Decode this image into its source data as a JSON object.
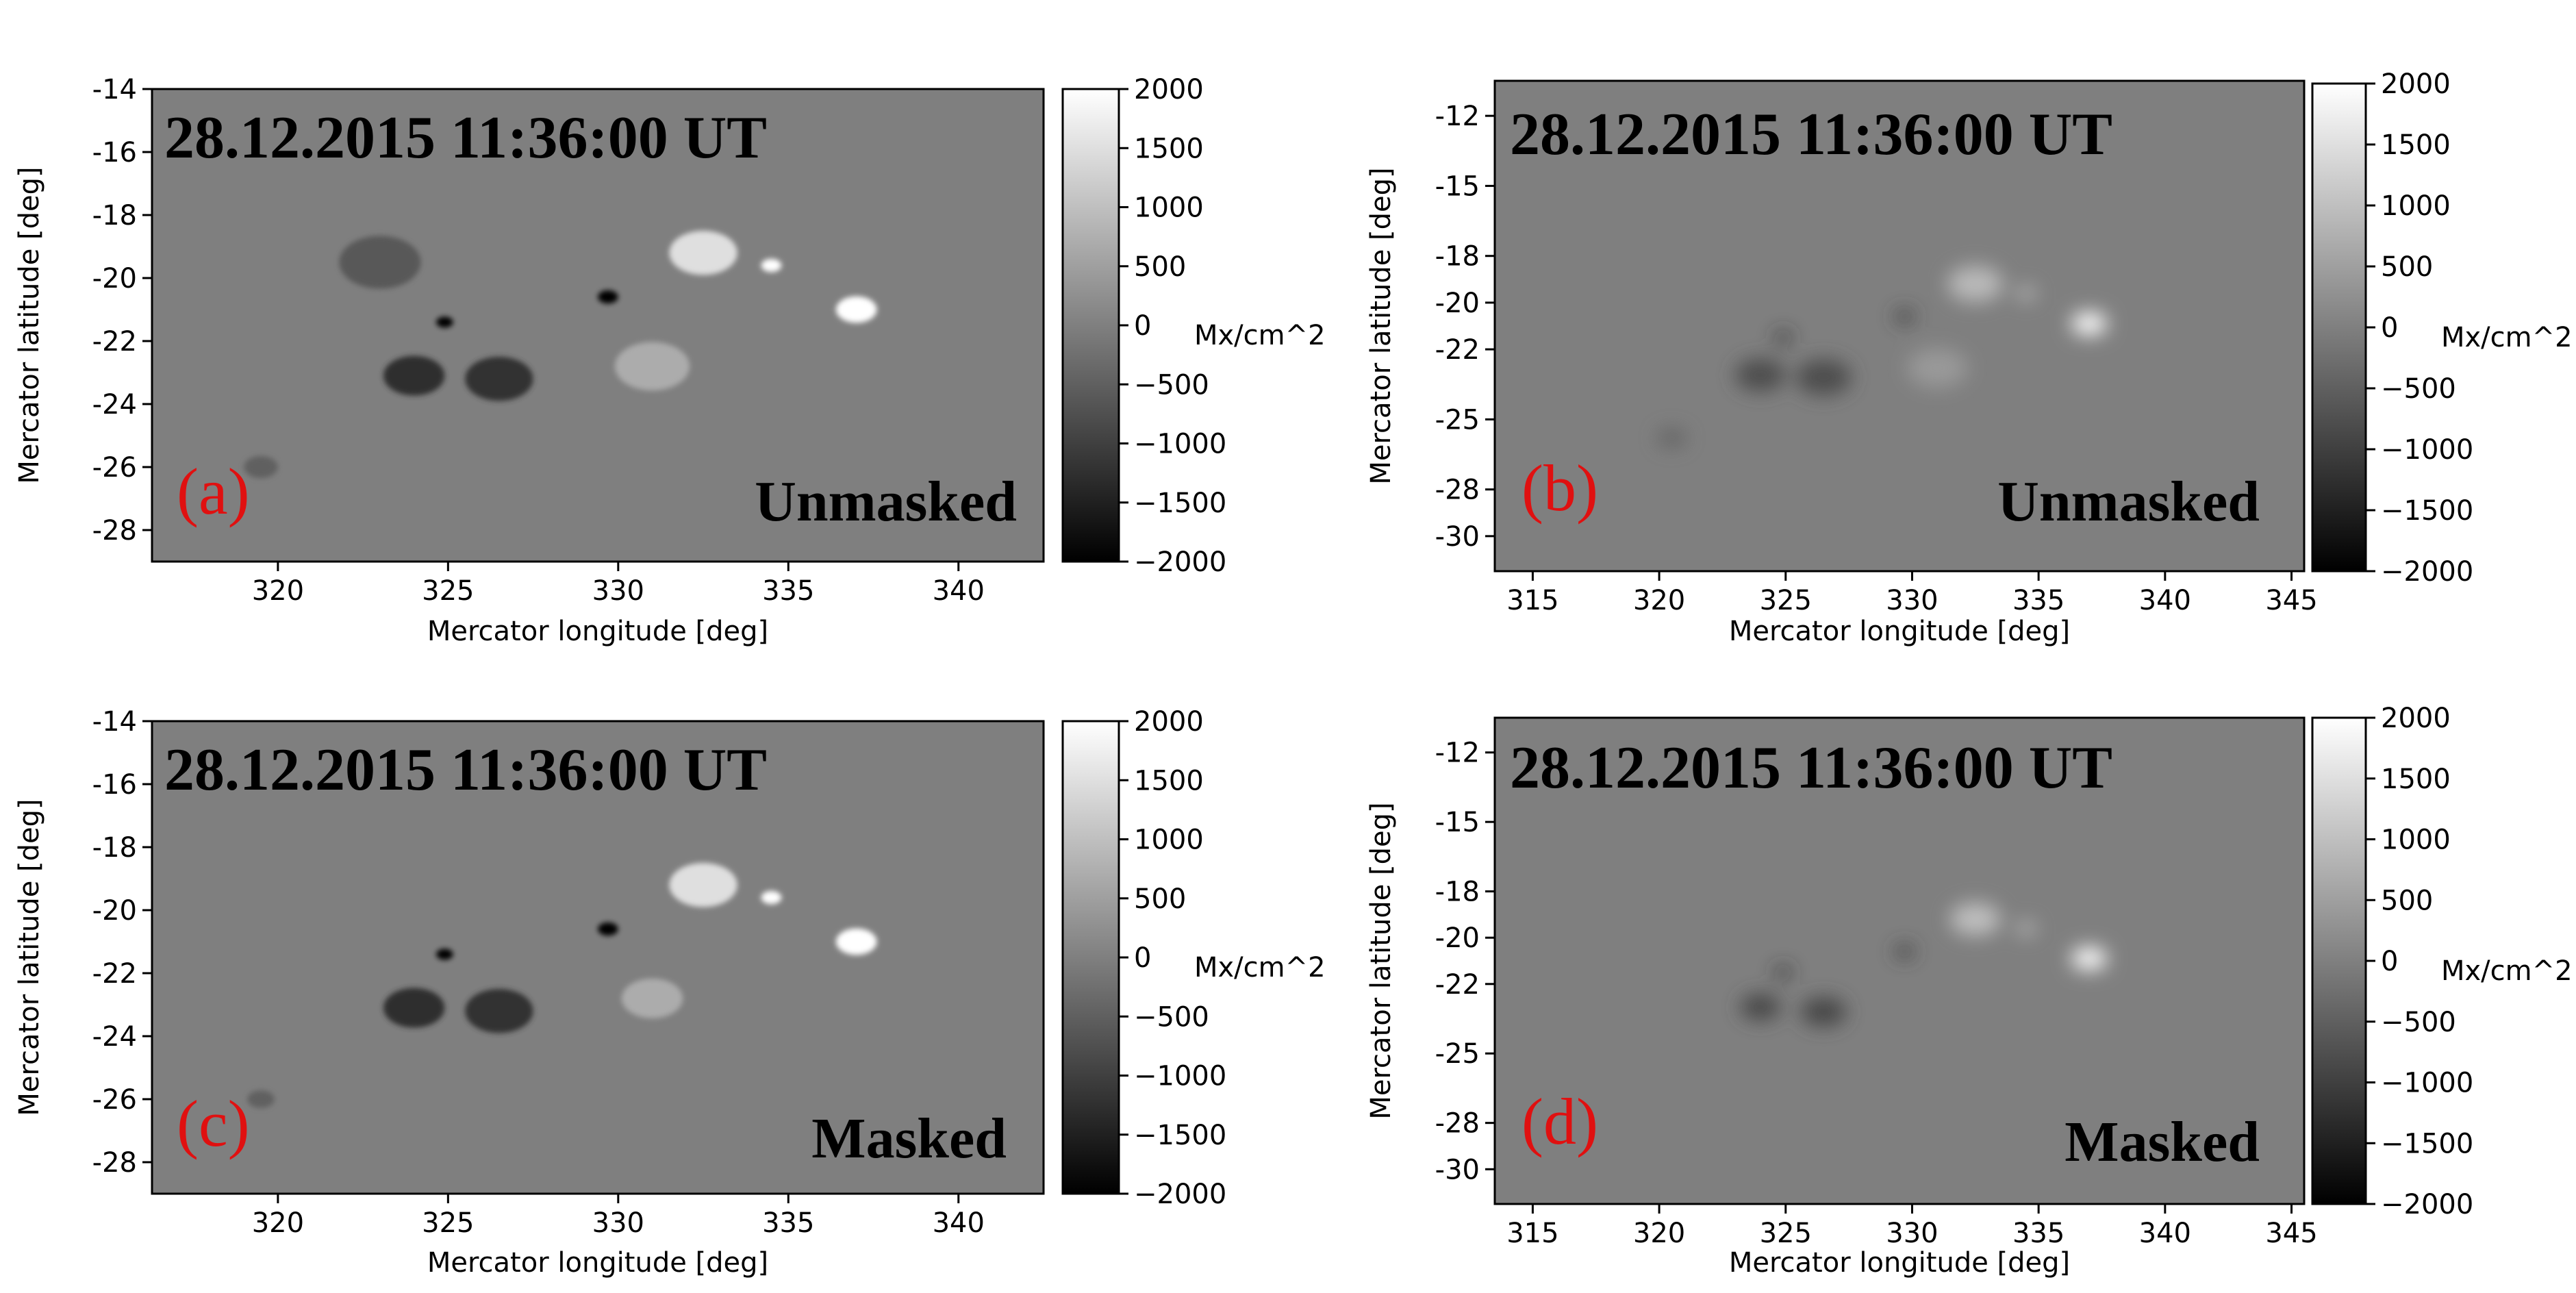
{
  "colors": {
    "map_background": "#7f7f7f",
    "panel_letter": "#e01010",
    "colormap_low": "#000000",
    "colormap_high": "#ffffff"
  },
  "chart_data": [
    {
      "type": "heatmap",
      "panel": "(a)",
      "timestamp": "28.12.2015  11:36:00 UT",
      "status": "Unmasked",
      "xlabel": "Mercator longitude [deg]",
      "ylabel": "Mercator latitude [deg]",
      "xticks": [
        "320",
        "325",
        "330",
        "335",
        "340"
      ],
      "yticks": [
        "-14",
        "-16",
        "-18",
        "-20",
        "-22",
        "-24",
        "-26",
        "-28"
      ],
      "xlim": [
        316.3,
        342.5
      ],
      "ylim": [
        -29,
        -14
      ],
      "colorbar": {
        "label": "Mx/cm^2",
        "ticks": [
          "2000",
          "1500",
          "1000",
          "500",
          "0",
          "−500",
          "−1000",
          "−1500",
          "−2000"
        ],
        "range": [
          -2000,
          2000
        ]
      },
      "style": "sharp",
      "features": [
        {
          "lon": 324.9,
          "lat": -21.4,
          "value": -2000,
          "size": 0.25
        },
        {
          "lon": 324.0,
          "lat": -23.1,
          "value": -1300,
          "size": 0.9
        },
        {
          "lon": 326.5,
          "lat": -23.2,
          "value": -1200,
          "size": 1.0
        },
        {
          "lon": 329.7,
          "lat": -20.6,
          "value": -2000,
          "size": 0.3
        },
        {
          "lon": 332.5,
          "lat": -19.2,
          "value": 1500,
          "size": 1.0
        },
        {
          "lon": 334.5,
          "lat": -19.6,
          "value": 2000,
          "size": 0.3
        },
        {
          "lon": 337.0,
          "lat": -21.0,
          "value": 2000,
          "size": 0.6
        },
        {
          "lon": 331.0,
          "lat": -22.8,
          "value": 700,
          "size": 1.1
        },
        {
          "lon": 323.0,
          "lat": -19.5,
          "value": -600,
          "size": 1.2
        },
        {
          "lon": 319.5,
          "lat": -26.0,
          "value": -500,
          "size": 0.5
        }
      ]
    },
    {
      "type": "heatmap",
      "panel": "(b)",
      "timestamp": "28.12.2015  11:36:00 UT",
      "status": "Unmasked",
      "xlabel": "Mercator longitude [deg]",
      "ylabel": "Mercator latitude [deg]",
      "xticks": [
        "315",
        "320",
        "325",
        "330",
        "335",
        "340",
        "345"
      ],
      "yticks": [
        "-12",
        "-15",
        "-18",
        "-20",
        "-22",
        "-25",
        "-28",
        "-30"
      ],
      "xlim": [
        313.5,
        345.5
      ],
      "ylim": [
        -31.5,
        -10.5
      ],
      "colorbar": {
        "label": "Mx/cm^2",
        "ticks": [
          "2000",
          "1500",
          "1000",
          "500",
          "0",
          "−500",
          "−1000",
          "−1500",
          "−2000"
        ],
        "range": [
          -2000,
          2000
        ]
      },
      "style": "blurred",
      "features": [
        {
          "lon": 324.9,
          "lat": -21.5,
          "value": -1200,
          "size": 0.35
        },
        {
          "lon": 324.0,
          "lat": -23.1,
          "value": -800,
          "size": 1.0
        },
        {
          "lon": 326.5,
          "lat": -23.2,
          "value": -800,
          "size": 1.1
        },
        {
          "lon": 329.7,
          "lat": -20.6,
          "value": -1000,
          "size": 0.4
        },
        {
          "lon": 332.5,
          "lat": -19.2,
          "value": 900,
          "size": 1.1
        },
        {
          "lon": 334.5,
          "lat": -19.6,
          "value": 900,
          "size": 0.4
        },
        {
          "lon": 337.0,
          "lat": -20.9,
          "value": 2000,
          "size": 0.7
        },
        {
          "lon": 331.0,
          "lat": -22.8,
          "value": 400,
          "size": 1.2
        },
        {
          "lon": 320.5,
          "lat": -25.8,
          "value": -400,
          "size": 0.6
        }
      ]
    },
    {
      "type": "heatmap",
      "panel": "(c)",
      "timestamp": "28.12.2015  11:36:00 UT",
      "status": "Masked",
      "xlabel": "Mercator longitude [deg]",
      "ylabel": "Mercator latitude [deg]",
      "xticks": [
        "320",
        "325",
        "330",
        "335",
        "340"
      ],
      "yticks": [
        "-14",
        "-16",
        "-18",
        "-20",
        "-22",
        "-24",
        "-26",
        "-28"
      ],
      "xlim": [
        316.3,
        342.5
      ],
      "ylim": [
        -29,
        -14
      ],
      "colorbar": {
        "label": "Mx/cm^2",
        "ticks": [
          "2000",
          "1500",
          "1000",
          "500",
          "0",
          "−500",
          "−1000",
          "−1500",
          "−2000"
        ],
        "range": [
          -2000,
          2000
        ]
      },
      "style": "sharp",
      "features": [
        {
          "lon": 324.9,
          "lat": -21.4,
          "value": -2000,
          "size": 0.25
        },
        {
          "lon": 324.0,
          "lat": -23.1,
          "value": -1300,
          "size": 0.9
        },
        {
          "lon": 326.5,
          "lat": -23.2,
          "value": -1200,
          "size": 1.0
        },
        {
          "lon": 329.7,
          "lat": -20.6,
          "value": -2000,
          "size": 0.3
        },
        {
          "lon": 332.5,
          "lat": -19.2,
          "value": 1500,
          "size": 1.0
        },
        {
          "lon": 334.5,
          "lat": -19.6,
          "value": 2000,
          "size": 0.3
        },
        {
          "lon": 337.0,
          "lat": -21.0,
          "value": 2000,
          "size": 0.6
        },
        {
          "lon": 331.0,
          "lat": -22.8,
          "value": 700,
          "size": 0.9
        },
        {
          "lon": 319.5,
          "lat": -26.0,
          "value": -500,
          "size": 0.4
        }
      ]
    },
    {
      "type": "heatmap",
      "panel": "(d)",
      "timestamp": "28.12.2015  11:36:00 UT",
      "status": "Masked",
      "xlabel": "Mercator longitude [deg]",
      "ylabel": "Mercator latitude [deg]",
      "xticks": [
        "315",
        "320",
        "325",
        "330",
        "335",
        "340",
        "345"
      ],
      "yticks": [
        "-12",
        "-15",
        "-18",
        "-20",
        "-22",
        "-25",
        "-28",
        "-30"
      ],
      "xlim": [
        313.5,
        345.5
      ],
      "ylim": [
        -31.5,
        -10.5
      ],
      "colorbar": {
        "label": "Mx/cm^2",
        "ticks": [
          "2000",
          "1500",
          "1000",
          "500",
          "0",
          "−500",
          "−1000",
          "−1500",
          "−2000"
        ],
        "range": [
          -2000,
          2000
        ]
      },
      "style": "blurred",
      "features": [
        {
          "lon": 324.9,
          "lat": -21.5,
          "value": -1200,
          "size": 0.35
        },
        {
          "lon": 324.0,
          "lat": -23.0,
          "value": -900,
          "size": 0.8
        },
        {
          "lon": 326.5,
          "lat": -23.2,
          "value": -900,
          "size": 0.9
        },
        {
          "lon": 329.7,
          "lat": -20.6,
          "value": -1000,
          "size": 0.4
        },
        {
          "lon": 332.5,
          "lat": -19.2,
          "value": 1000,
          "size": 1.0
        },
        {
          "lon": 334.5,
          "lat": -19.6,
          "value": 900,
          "size": 0.4
        },
        {
          "lon": 337.0,
          "lat": -20.9,
          "value": 2000,
          "size": 0.7
        }
      ]
    }
  ]
}
